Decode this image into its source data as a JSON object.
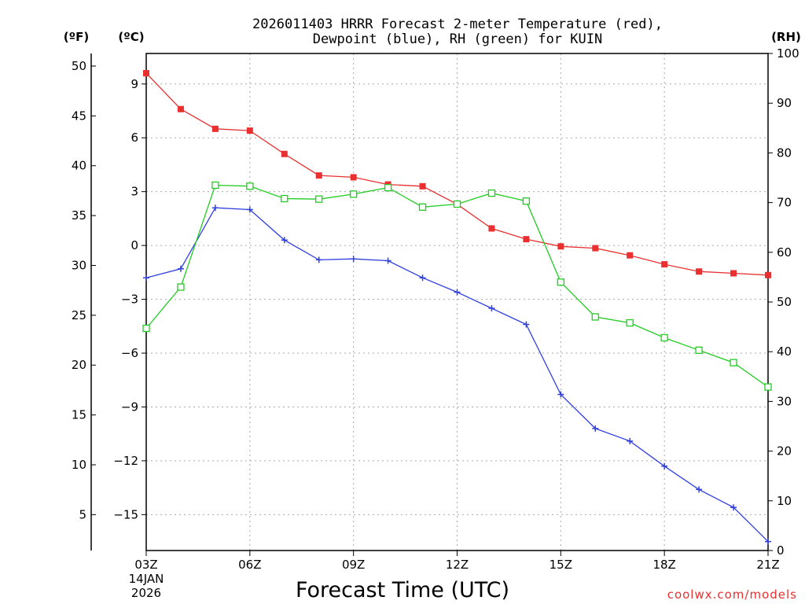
{
  "chart_data": {
    "type": "line",
    "title_line1": "2026011403 HRRR Forecast 2-meter Temperature (red),",
    "title_line2": "Dewpoint (blue), RH (green) for KUIN",
    "xlabel": "Forecast Time (UTC)",
    "left_axis_f_label": "(ºF)",
    "left_axis_c_label": "(ºC)",
    "right_axis_label": "(RH)",
    "watermark": "coolwx.com/models",
    "date_day": "14JAN",
    "date_year": "2026",
    "x_ticks": [
      "03Z",
      "06Z",
      "09Z",
      "12Z",
      "15Z",
      "18Z",
      "21Z"
    ],
    "x_hours": [
      3,
      21
    ],
    "celsius_ticks": [
      "9",
      "6",
      "3",
      "0",
      "−3",
      "−6",
      "−9",
      "−12",
      "−15"
    ],
    "celsius_tick_values": [
      9,
      6,
      3,
      0,
      -3,
      -6,
      -9,
      -12,
      -15
    ],
    "fahrenheit_ticks": [
      "50",
      "45",
      "40",
      "35",
      "30",
      "25",
      "20",
      "15",
      "10",
      "5"
    ],
    "fahrenheit_tick_values": [
      50,
      45,
      40,
      35,
      30,
      25,
      20,
      15,
      10,
      5
    ],
    "rh_ticks": [
      "100",
      "90",
      "80",
      "70",
      "60",
      "50",
      "40",
      "30",
      "20",
      "10",
      "0"
    ],
    "rh_tick_values": [
      100,
      90,
      80,
      70,
      60,
      50,
      40,
      30,
      20,
      10,
      0
    ],
    "ylim_celsius": [
      -17.0,
      10.7
    ],
    "ylim_rh": [
      0,
      100
    ],
    "series": [
      {
        "name": "Temperature",
        "color": "#e83030",
        "axis": "celsius",
        "marker": "filled-square",
        "hours": [
          3,
          4,
          5,
          6,
          7,
          8,
          9,
          10,
          11,
          12,
          13,
          14,
          15,
          16,
          17,
          18,
          19,
          20,
          21
        ],
        "values": [
          9.6,
          7.6,
          6.5,
          6.4,
          5.1,
          3.9,
          3.8,
          3.4,
          3.3,
          2.3,
          0.95,
          0.35,
          -0.05,
          -0.15,
          -0.55,
          -1.05,
          -1.45,
          -1.55,
          -1.65
        ]
      },
      {
        "name": "Dewpoint",
        "color": "#3040e0",
        "axis": "celsius",
        "marker": "plus",
        "hours": [
          3,
          4,
          5,
          6,
          7,
          8,
          9,
          10,
          11,
          12,
          13,
          14,
          15,
          16,
          17,
          18,
          19,
          20,
          21
        ],
        "values": [
          -1.8,
          -1.3,
          2.1,
          2.0,
          0.3,
          -0.8,
          -0.75,
          -0.85,
          -1.8,
          -2.6,
          -3.5,
          -4.4,
          -8.3,
          -10.2,
          -10.9,
          -12.3,
          -13.6,
          -14.6,
          -16.5
        ]
      },
      {
        "name": "RH",
        "color": "#22cc22",
        "axis": "rh",
        "marker": "open-square",
        "hours": [
          3,
          4,
          5,
          6,
          7,
          8,
          9,
          10,
          11,
          12,
          13,
          14,
          15,
          16,
          17,
          18,
          19,
          20,
          21
        ],
        "values": [
          44.7,
          53.0,
          73.5,
          73.3,
          70.8,
          70.7,
          71.7,
          73.0,
          69.1,
          69.7,
          71.9,
          70.3,
          54.0,
          47.0,
          45.8,
          42.8,
          40.3,
          37.8,
          32.9
        ]
      }
    ]
  }
}
